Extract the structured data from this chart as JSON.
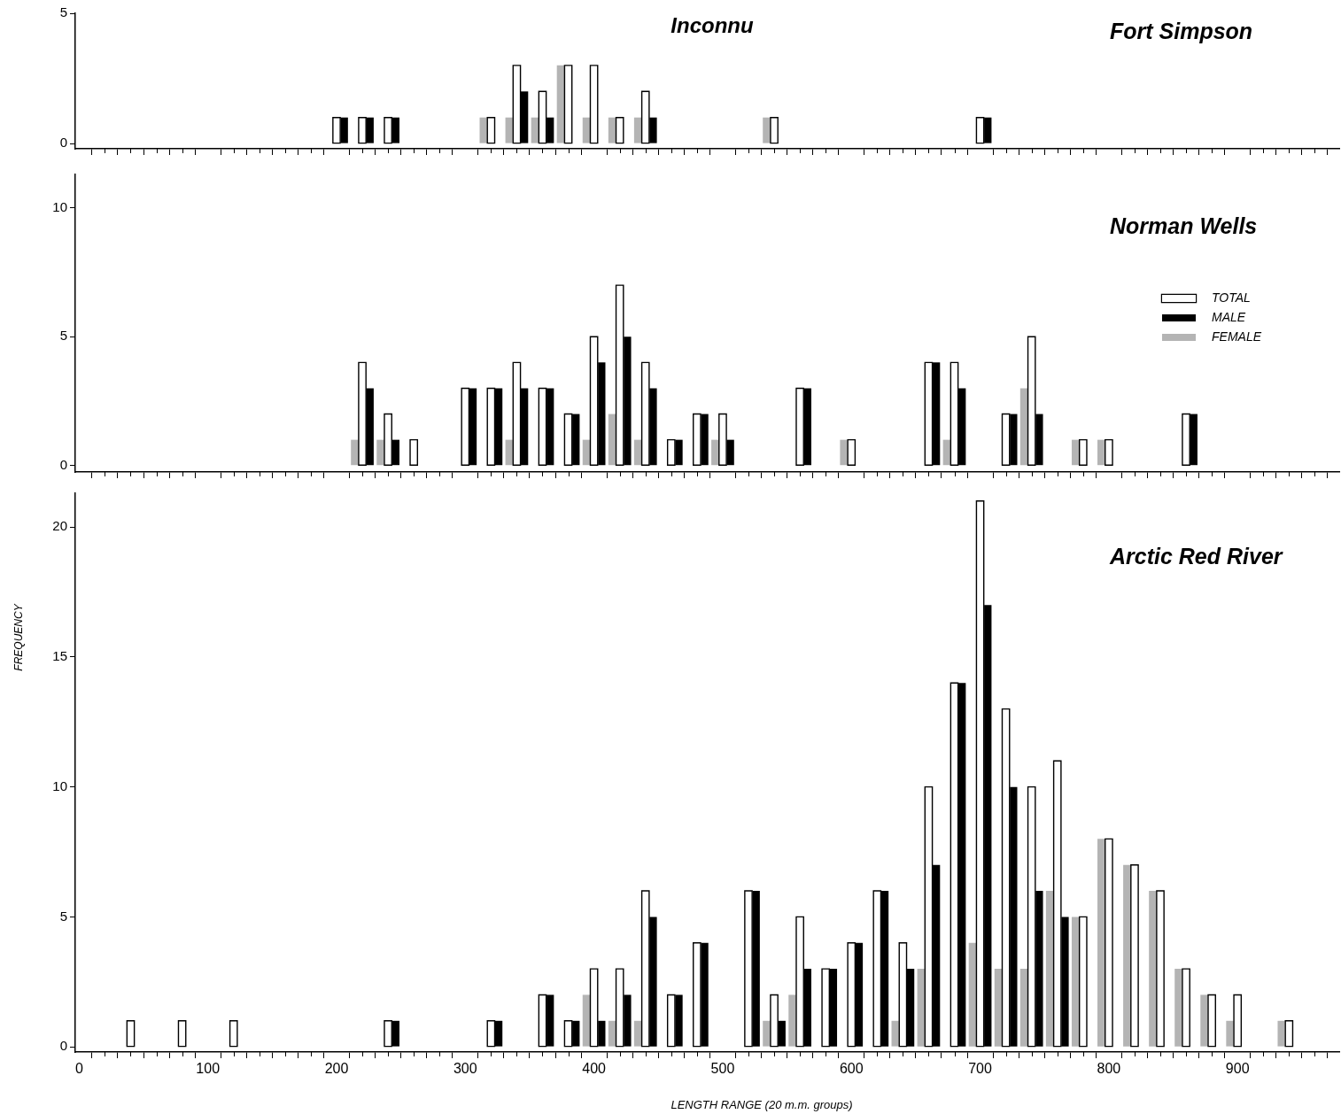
{
  "chart_data": [
    {
      "type": "bar",
      "title": "Inconnu",
      "subtitle": "Fort Simpson",
      "tick_labels": "y",
      "xlim": [
        -3,
        979
      ],
      "ylim": [
        -0.2,
        5
      ],
      "yticks": [
        0,
        5
      ],
      "xticks": [
        0,
        {
          "value": 20,
          "label": null
        },
        {
          "value": 40,
          "label": null
        },
        {
          "value": 60,
          "label": null
        },
        {
          "value": 80,
          "label": null
        },
        100,
        {
          "value": 120,
          "label": null
        },
        {
          "value": 140,
          "label": null
        },
        {
          "value": 160,
          "label": null
        },
        {
          "value": 180,
          "label": null
        },
        200,
        {
          "value": 220,
          "label": null
        },
        {
          "value": 240,
          "label": null
        },
        {
          "value": 260,
          "label": null
        },
        {
          "value": 280,
          "label": null
        },
        300,
        {
          "value": 320,
          "label": null
        },
        {
          "value": 340,
          "label": null
        },
        {
          "value": 360,
          "label": null
        },
        {
          "value": 380,
          "label": null
        },
        400,
        {
          "value": 420,
          "label": null
        },
        {
          "value": 440,
          "label": null
        },
        {
          "value": 460,
          "label": null
        },
        {
          "value": 480,
          "label": null
        },
        500,
        {
          "value": 520,
          "label": null
        },
        {
          "value": 540,
          "label": null
        },
        {
          "value": 560,
          "label": null
        },
        {
          "value": 580,
          "label": null
        },
        600,
        {
          "value": 620,
          "label": null
        },
        {
          "value": 640,
          "label": null
        },
        {
          "value": 660,
          "label": null
        },
        {
          "value": 680,
          "label": null
        },
        700,
        {
          "value": 720,
          "label": null
        },
        {
          "value": 740,
          "label": null
        },
        {
          "value": 760,
          "label": null
        },
        {
          "value": 780,
          "label": null
        },
        800,
        {
          "value": 820,
          "label": null
        },
        {
          "value": 840,
          "label": null
        },
        {
          "value": 860,
          "label": null
        },
        {
          "value": 880,
          "label": null
        },
        900,
        {
          "value": 920,
          "label": null
        },
        {
          "value": 940,
          "label": null
        },
        {
          "value": 960,
          "label": null
        }
      ],
      "x": [
        200,
        220,
        240,
        320,
        340,
        360,
        380,
        400,
        420,
        440,
        540,
        700
      ],
      "series": [
        {
          "color": "#ffffff",
          "values": [
            1,
            1,
            1,
            1,
            3,
            2,
            3,
            3,
            1,
            2,
            1,
            1
          ]
        },
        {
          "color": "#000000",
          "values": [
            1,
            1,
            1,
            0,
            2,
            1,
            0,
            0,
            0,
            1,
            0,
            1
          ]
        },
        {
          "color": "#b4b4b4",
          "values": [
            0,
            0,
            0,
            1,
            1,
            1,
            3,
            1,
            1,
            1,
            1,
            0
          ]
        }
      ]
    },
    {
      "type": "bar",
      "subtitle": "Norman Wells",
      "tick_labels": "y",
      "legend": "top right",
      "xlim": [
        -3,
        979
      ],
      "ylim": [
        -0.25,
        11.3
      ],
      "yticks": [
        0,
        5,
        10
      ],
      "xticks": [
        0,
        {
          "value": 20,
          "label": null
        },
        {
          "value": 40,
          "label": null
        },
        {
          "value": 60,
          "label": null
        },
        {
          "value": 80,
          "label": null
        },
        100,
        {
          "value": 120,
          "label": null
        },
        {
          "value": 140,
          "label": null
        },
        {
          "value": 160,
          "label": null
        },
        {
          "value": 180,
          "label": null
        },
        200,
        {
          "value": 220,
          "label": null
        },
        {
          "value": 240,
          "label": null
        },
        {
          "value": 260,
          "label": null
        },
        {
          "value": 280,
          "label": null
        },
        300,
        {
          "value": 320,
          "label": null
        },
        {
          "value": 340,
          "label": null
        },
        {
          "value": 360,
          "label": null
        },
        {
          "value": 380,
          "label": null
        },
        400,
        {
          "value": 420,
          "label": null
        },
        {
          "value": 440,
          "label": null
        },
        {
          "value": 460,
          "label": null
        },
        {
          "value": 480,
          "label": null
        },
        500,
        {
          "value": 520,
          "label": null
        },
        {
          "value": 540,
          "label": null
        },
        {
          "value": 560,
          "label": null
        },
        {
          "value": 580,
          "label": null
        },
        600,
        {
          "value": 620,
          "label": null
        },
        {
          "value": 640,
          "label": null
        },
        {
          "value": 660,
          "label": null
        },
        {
          "value": 680,
          "label": null
        },
        700,
        {
          "value": 720,
          "label": null
        },
        {
          "value": 740,
          "label": null
        },
        {
          "value": 760,
          "label": null
        },
        {
          "value": 780,
          "label": null
        },
        800,
        {
          "value": 820,
          "label": null
        },
        {
          "value": 840,
          "label": null
        },
        {
          "value": 860,
          "label": null
        },
        {
          "value": 880,
          "label": null
        },
        900,
        {
          "value": 920,
          "label": null
        },
        {
          "value": 940,
          "label": null
        },
        {
          "value": 960,
          "label": null
        }
      ],
      "x": [
        220,
        240,
        260,
        300,
        320,
        340,
        360,
        380,
        400,
        420,
        440,
        460,
        480,
        500,
        560,
        600,
        660,
        680,
        720,
        740,
        780,
        800,
        860
      ],
      "series": [
        {
          "name": "TOTAL",
          "color": "#ffffff",
          "values": [
            4,
            2,
            1,
            3,
            3,
            4,
            3,
            2,
            5,
            7,
            4,
            1,
            2,
            2,
            3,
            1,
            4,
            4,
            2,
            5,
            1,
            1,
            2
          ]
        },
        {
          "name": "MALE",
          "color": "#000000",
          "values": [
            3,
            1,
            0,
            3,
            3,
            3,
            3,
            2,
            4,
            5,
            3,
            1,
            2,
            1,
            3,
            0,
            4,
            3,
            2,
            2,
            0,
            0,
            2
          ]
        },
        {
          "name": "FEMALE",
          "color": "#b4b4b4",
          "values": [
            1,
            1,
            0,
            0,
            0,
            1,
            0,
            0,
            1,
            2,
            1,
            0,
            0,
            1,
            0,
            1,
            0,
            1,
            0,
            3,
            1,
            1,
            0
          ]
        }
      ]
    },
    {
      "type": "bar",
      "subtitle": "Arctic Red River",
      "xlabel": "LENGTH RANGE (20 m.m. groups)",
      "ylabel": "FREQUENCY",
      "xlim": [
        -3,
        979
      ],
      "ylim": [
        -0.2,
        21.3
      ],
      "yticks": [
        0,
        5,
        10,
        15,
        20
      ],
      "xticks": [
        0,
        {
          "value": 20,
          "label": null
        },
        {
          "value": 40,
          "label": null
        },
        {
          "value": 60,
          "label": null
        },
        {
          "value": 80,
          "label": null
        },
        100,
        {
          "value": 120,
          "label": null
        },
        {
          "value": 140,
          "label": null
        },
        {
          "value": 160,
          "label": null
        },
        {
          "value": 180,
          "label": null
        },
        200,
        {
          "value": 220,
          "label": null
        },
        {
          "value": 240,
          "label": null
        },
        {
          "value": 260,
          "label": null
        },
        {
          "value": 280,
          "label": null
        },
        300,
        {
          "value": 320,
          "label": null
        },
        {
          "value": 340,
          "label": null
        },
        {
          "value": 360,
          "label": null
        },
        {
          "value": 380,
          "label": null
        },
        400,
        {
          "value": 420,
          "label": null
        },
        {
          "value": 440,
          "label": null
        },
        {
          "value": 460,
          "label": null
        },
        {
          "value": 480,
          "label": null
        },
        500,
        {
          "value": 520,
          "label": null
        },
        {
          "value": 540,
          "label": null
        },
        {
          "value": 560,
          "label": null
        },
        {
          "value": 580,
          "label": null
        },
        600,
        {
          "value": 620,
          "label": null
        },
        {
          "value": 640,
          "label": null
        },
        {
          "value": 660,
          "label": null
        },
        {
          "value": 680,
          "label": null
        },
        700,
        {
          "value": 720,
          "label": null
        },
        {
          "value": 740,
          "label": null
        },
        {
          "value": 760,
          "label": null
        },
        {
          "value": 780,
          "label": null
        },
        800,
        {
          "value": 820,
          "label": null
        },
        {
          "value": 840,
          "label": null
        },
        {
          "value": 860,
          "label": null
        },
        {
          "value": 880,
          "label": null
        },
        900,
        {
          "value": 920,
          "label": null
        },
        {
          "value": 940,
          "label": null
        },
        {
          "value": 960,
          "label": null
        }
      ],
      "x": [
        40,
        80,
        120,
        240,
        320,
        360,
        380,
        400,
        420,
        440,
        460,
        480,
        520,
        540,
        560,
        580,
        600,
        620,
        640,
        660,
        680,
        700,
        720,
        740,
        760,
        780,
        800,
        820,
        840,
        860,
        880,
        900,
        940
      ],
      "series": [
        {
          "color": "#ffffff",
          "values": [
            1,
            1,
            1,
            1,
            1,
            2,
            1,
            3,
            3,
            6,
            2,
            4,
            6,
            2,
            5,
            3,
            4,
            6,
            4,
            10,
            14,
            21,
            13,
            10,
            11,
            5,
            8,
            7,
            6,
            3,
            2,
            2,
            1
          ]
        },
        {
          "color": "#000000",
          "values": [
            0,
            0,
            0,
            1,
            1,
            2,
            1,
            1,
            2,
            5,
            2,
            4,
            6,
            1,
            3,
            3,
            4,
            6,
            3,
            7,
            14,
            17,
            10,
            6,
            5,
            0,
            0,
            0,
            0,
            0,
            0,
            0,
            0
          ]
        },
        {
          "color": "#b4b4b4",
          "values": [
            0,
            0,
            0,
            0,
            0,
            0,
            0,
            2,
            1,
            1,
            0,
            0,
            0,
            1,
            2,
            0,
            0,
            0,
            1,
            3,
            0,
            4,
            3,
            3,
            6,
            5,
            8,
            7,
            6,
            3,
            2,
            1,
            1
          ]
        }
      ]
    }
  ]
}
